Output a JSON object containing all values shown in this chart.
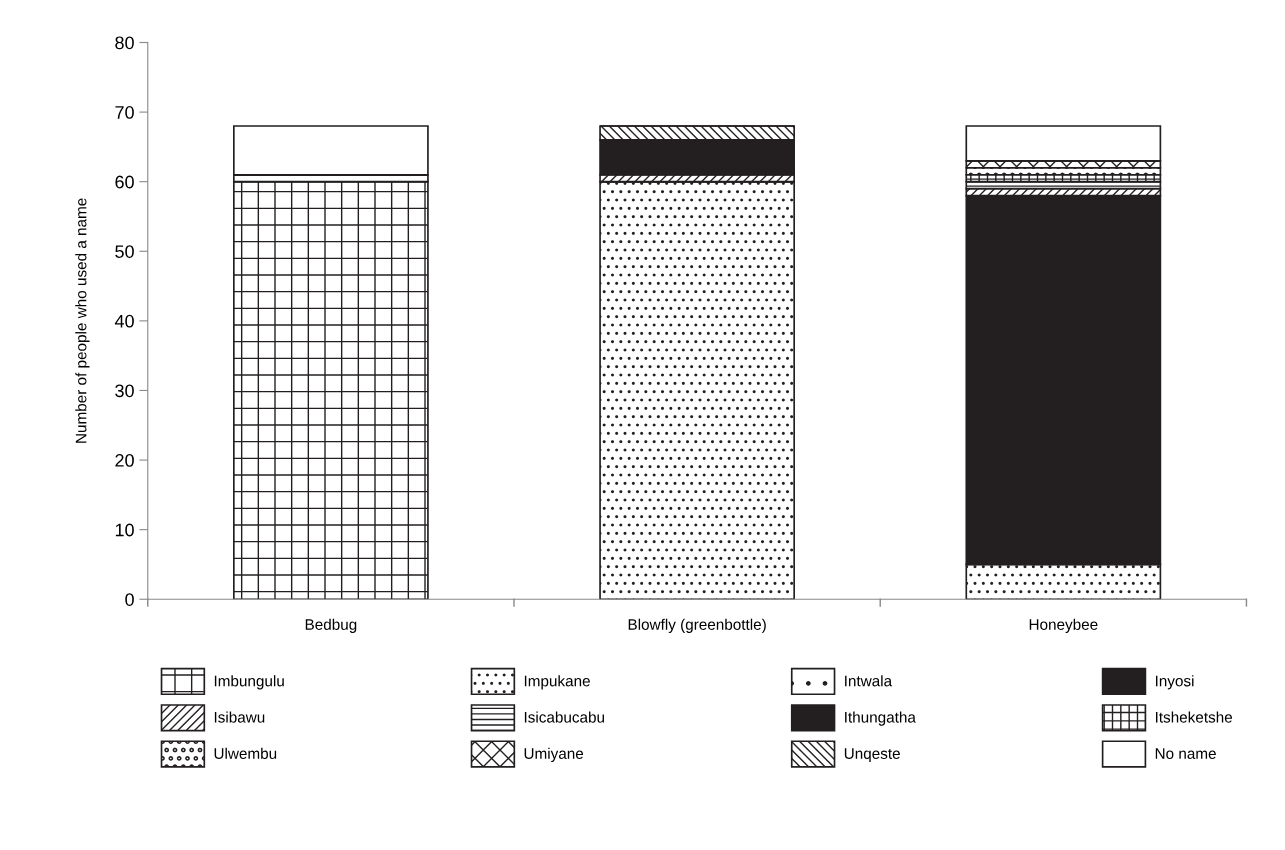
{
  "chart_data": {
    "type": "bar",
    "stacked": true,
    "ylabel": "Number of people who used a name",
    "categories": [
      "Bedbug",
      "Blowfly (greenbottle)",
      "Honeybee"
    ],
    "ylim": [
      0,
      80
    ],
    "yticks": [
      0,
      10,
      20,
      30,
      40,
      50,
      60,
      70,
      80
    ],
    "grid": false,
    "legend": "bottom",
    "series": [
      {
        "name": "Imbungulu",
        "color": "#231f20",
        "values": [
          60,
          0,
          0
        ]
      },
      {
        "name": "Impukane",
        "color": "#231f20",
        "values": [
          0,
          60,
          5
        ]
      },
      {
        "name": "Intwala",
        "color": "#231f20",
        "values": [
          1,
          0,
          0
        ]
      },
      {
        "name": "Inyosi",
        "color": "#231f20",
        "values": [
          0,
          0,
          53
        ]
      },
      {
        "name": "Isibawu",
        "color": "#231f20",
        "values": [
          0,
          1,
          1
        ]
      },
      {
        "name": "Isicabucabu",
        "color": "#231f20",
        "values": [
          0,
          0,
          1
        ]
      },
      {
        "name": "Ithungatha",
        "color": "#231f20",
        "values": [
          0,
          5,
          0
        ]
      },
      {
        "name": "Itsheketshe",
        "color": "#231f20",
        "values": [
          0,
          0,
          1
        ]
      },
      {
        "name": "Ulwembu",
        "color": "#231f20",
        "values": [
          0,
          0,
          1
        ]
      },
      {
        "name": "Umiyane",
        "color": "#231f20",
        "values": [
          0,
          0,
          1
        ]
      },
      {
        "name": "Unqeste",
        "color": "#231f20",
        "values": [
          0,
          2,
          0
        ]
      },
      {
        "name": "No name",
        "color": "#ffffff",
        "values": [
          7,
          0,
          5
        ]
      }
    ]
  }
}
